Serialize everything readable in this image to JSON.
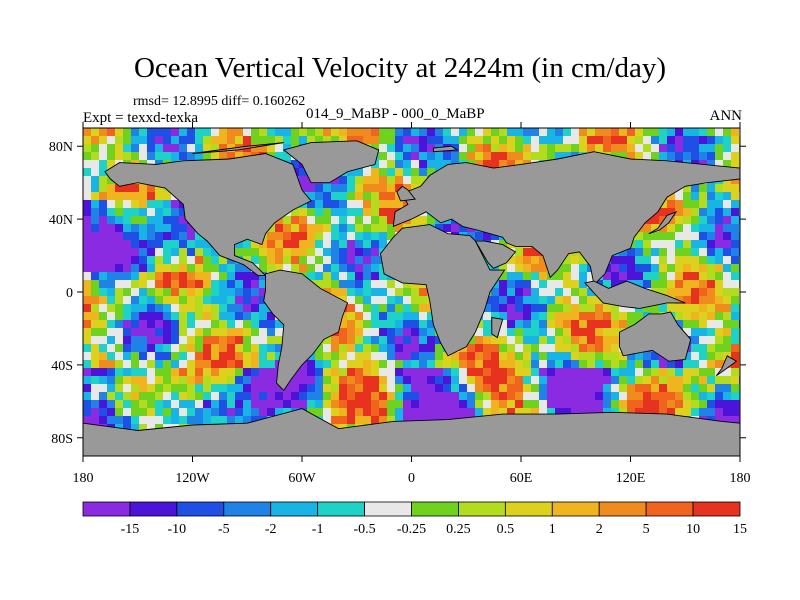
{
  "chart_data": {
    "type": "heatmap",
    "title": "Ocean Vertical Velocity at 2424m (in cm/day)",
    "stats_line": "rmsd= 12.8995  diff= 0.160262",
    "experiment_label": "Expt = texxd-texka",
    "subtitle": "014_9_MaBP - 000_0_MaBP",
    "season_label": "ANN",
    "xlim": [
      -180,
      180
    ],
    "ylim": [
      -90,
      90
    ],
    "x_ticks": [
      {
        "value": -180,
        "label": "180"
      },
      {
        "value": -120,
        "label": "120W"
      },
      {
        "value": -60,
        "label": "60W"
      },
      {
        "value": 0,
        "label": "0"
      },
      {
        "value": 60,
        "label": "60E"
      },
      {
        "value": 120,
        "label": "120E"
      },
      {
        "value": 180,
        "label": "180"
      }
    ],
    "y_ticks": [
      {
        "value": 80,
        "label": "80N"
      },
      {
        "value": 40,
        "label": "40N"
      },
      {
        "value": 0,
        "label": "0"
      },
      {
        "value": -40,
        "label": "40S"
      },
      {
        "value": -80,
        "label": "80S"
      }
    ],
    "land_color": "#999999",
    "colorbar": {
      "colors": [
        "#8a2be2",
        "#4b14d8",
        "#1e50e6",
        "#1e82e6",
        "#18b4e6",
        "#1ed2c8",
        "#e8e8e8",
        "#6ed21e",
        "#b4dc1e",
        "#dcd21e",
        "#f0b41e",
        "#f08c1e",
        "#f0641e",
        "#e6321e"
      ],
      "labels": [
        "-15",
        "-10",
        "-5",
        "-2",
        "-1",
        "-0.5",
        "-0.25",
        "0.25",
        "0.5",
        "1",
        "2",
        "5",
        "10",
        "15"
      ]
    }
  }
}
